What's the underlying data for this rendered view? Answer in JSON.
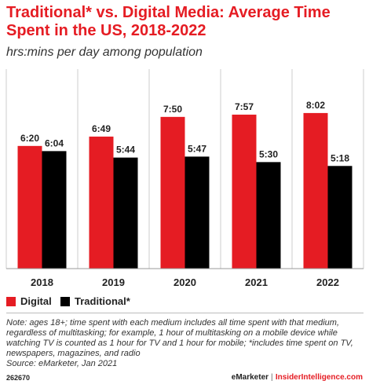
{
  "title": "Traditional* vs. Digital Media: Average Time Spent in the US, 2018-2022",
  "subtitle": "hrs:mins per day among population",
  "chart_data": {
    "type": "bar",
    "categories": [
      "2018",
      "2019",
      "2020",
      "2021",
      "2022"
    ],
    "series": [
      {
        "name": "Digital",
        "values": [
          6.333,
          6.817,
          7.833,
          7.95,
          8.033
        ],
        "labels": [
          "6:20",
          "6:49",
          "7:50",
          "7:57",
          "8:02"
        ],
        "color": "#e51c23"
      },
      {
        "name": "Traditional*",
        "values": [
          6.067,
          5.733,
          5.783,
          5.5,
          5.3
        ],
        "labels": [
          "6:04",
          "5:44",
          "5:47",
          "5:30",
          "5:18"
        ],
        "color": "#000000"
      }
    ],
    "ylim": [
      0,
      10.3
    ],
    "grid": false,
    "legend": "bottom-left"
  },
  "note": "Note: ages 18+; time spent with each medium includes all time spent with that medium, regardless of multitasking; for example, 1 hour of multitasking on a mobile device while watching TV is counted as 1 hour for TV and 1 hour for mobile; *includes time spent on TV, newspapers, magazines, and radio",
  "source": "Source: eMarketer, Jan 2021",
  "footer": {
    "id": "262670",
    "brand": "eMarketer",
    "separator": "|",
    "site": "InsiderIntelligence.com"
  }
}
